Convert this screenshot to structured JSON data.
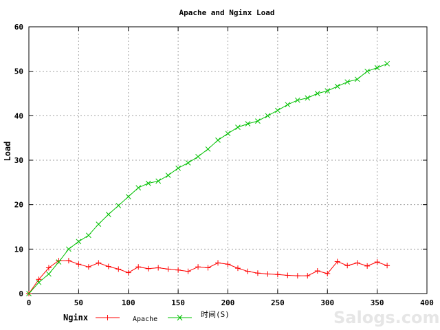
{
  "chart_data": {
    "type": "line",
    "title": "Apache and Nginx Load",
    "xlabel": "时间(S)",
    "ylabel": "Load",
    "xlim": [
      0,
      400
    ],
    "ylim": [
      0,
      60
    ],
    "xticks": [
      0,
      50,
      100,
      150,
      200,
      250,
      300,
      350,
      400
    ],
    "yticks": [
      0,
      10,
      20,
      30,
      40,
      50,
      60
    ],
    "grid": true,
    "legend_position": "bottom",
    "legend_title": "Nginx",
    "series": [
      {
        "name": "Apache",
        "color": "#ff0000",
        "marker": "plus",
        "x": [
          0,
          10,
          20,
          30,
          40,
          50,
          60,
          70,
          80,
          90,
          100,
          110,
          120,
          130,
          140,
          150,
          160,
          170,
          180,
          190,
          200,
          210,
          220,
          230,
          240,
          250,
          260,
          270,
          280,
          290,
          300,
          310,
          320,
          330,
          340,
          350,
          360
        ],
        "y": [
          0,
          3.2,
          5.8,
          7.4,
          7.4,
          6.6,
          6.0,
          6.9,
          6.1,
          5.5,
          4.7,
          6.0,
          5.6,
          5.8,
          5.5,
          5.3,
          5.0,
          6.0,
          5.8,
          6.9,
          6.6,
          5.7,
          5.0,
          4.6,
          4.4,
          4.3,
          4.1,
          4.0,
          4.0,
          5.1,
          4.5,
          7.2,
          6.3,
          6.9,
          6.2,
          7.1,
          6.3
        ]
      },
      {
        "name": "",
        "color": "#00c000",
        "marker": "x",
        "x": [
          0,
          10,
          20,
          30,
          40,
          50,
          60,
          70,
          80,
          90,
          100,
          110,
          120,
          130,
          140,
          150,
          160,
          170,
          180,
          190,
          200,
          210,
          220,
          230,
          240,
          250,
          260,
          270,
          280,
          290,
          300,
          310,
          320,
          330,
          340,
          350,
          360
        ],
        "y": [
          0,
          2.5,
          4.4,
          7.1,
          10.0,
          11.7,
          13.1,
          15.6,
          17.8,
          19.8,
          21.8,
          23.8,
          24.8,
          25.3,
          26.6,
          28.2,
          29.4,
          30.8,
          32.5,
          34.5,
          36.0,
          37.4,
          38.2,
          38.8,
          40.0,
          41.2,
          42.5,
          43.5,
          44.0,
          45.0,
          45.6,
          46.6,
          47.6,
          48.2,
          50.0,
          50.8,
          51.7
        ]
      }
    ]
  },
  "legend": {
    "nginx_label": "Nginx",
    "apache_label": "Apache",
    "xlabel_text": "时间(S)"
  },
  "watermark": "Salogs.com"
}
